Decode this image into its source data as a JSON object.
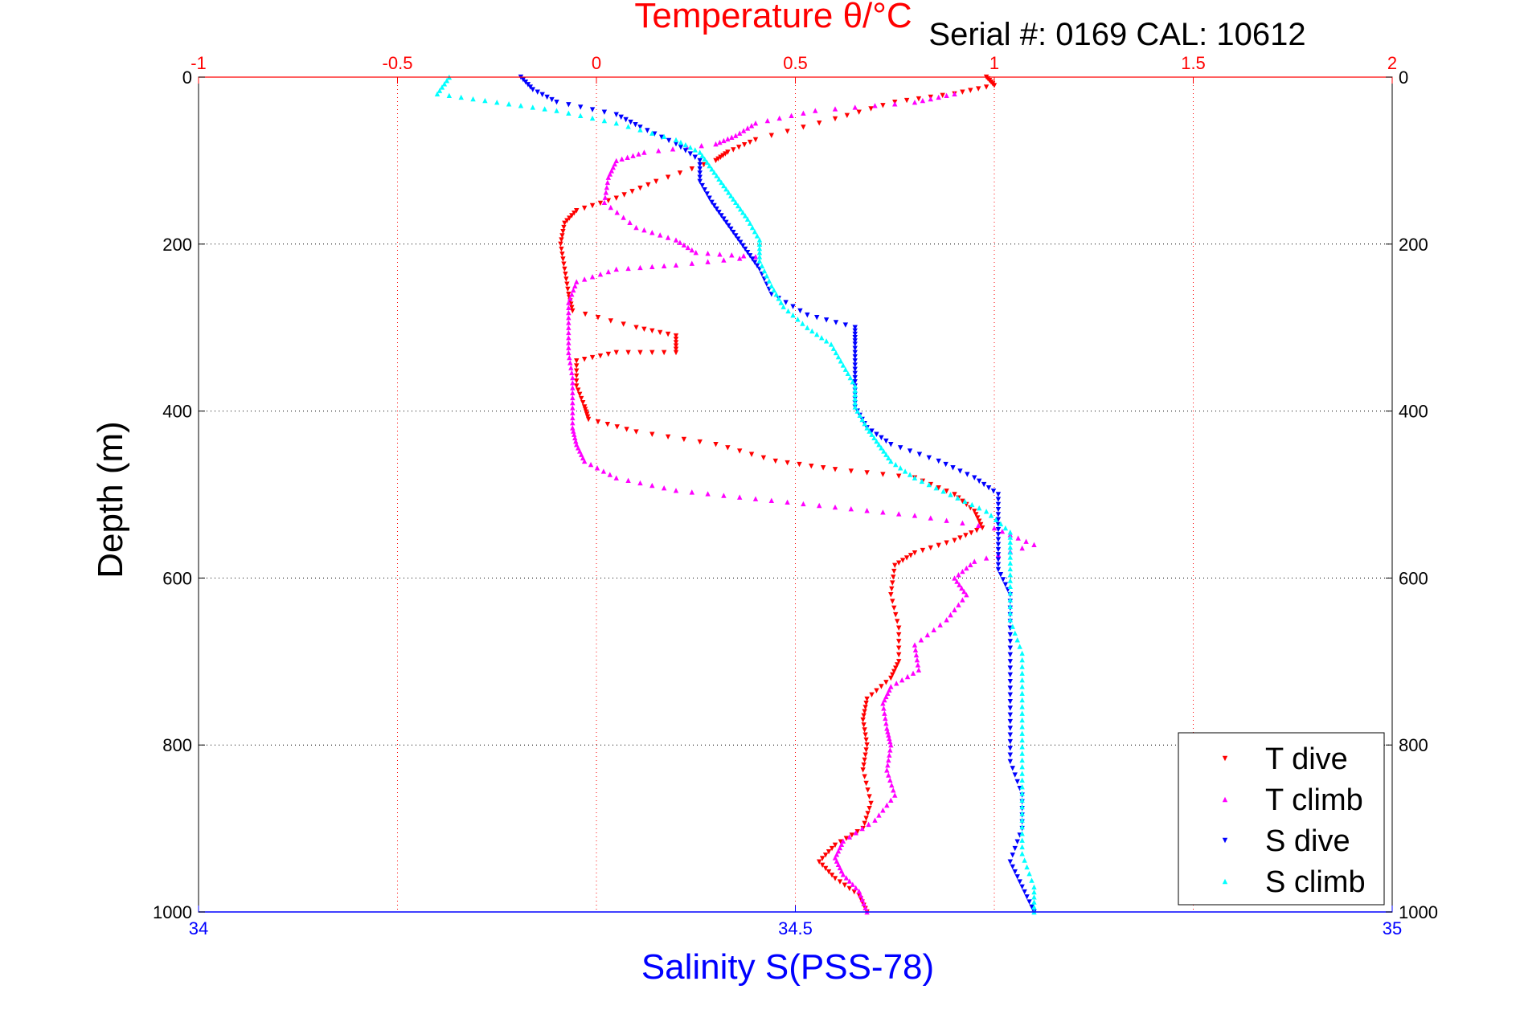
{
  "chart_data": {
    "type": "scatter",
    "title": "Temperature θ/°C",
    "subtitle": "Serial #: 0169 CAL: 10612",
    "xlabel": "Salinity S(PSS-78)",
    "ylabel": "Depth (m)",
    "x_top": {
      "label": "Temperature θ/°C",
      "lim": [
        -1,
        2
      ],
      "ticks": [
        "-1",
        "-0.5",
        "0",
        "0.5",
        "1",
        "1.5",
        "2"
      ],
      "color": "#ff0000"
    },
    "x_bottom": {
      "label": "Salinity S(PSS-78)",
      "lim": [
        34,
        35
      ],
      "ticks": [
        "34",
        "34.5",
        "35"
      ],
      "color": "#0000ff"
    },
    "y": {
      "lim": [
        0,
        1000
      ],
      "reversed": true,
      "ticks": [
        "0",
        "200",
        "400",
        "600",
        "800",
        "1000"
      ]
    },
    "grid": true,
    "legend_position": "bottom-right",
    "series": [
      {
        "name": "T dive",
        "axis": "temperature",
        "color": "#ff0000",
        "marker": "triangle-down",
        "points": [
          [
            0.98,
            0
          ],
          [
            1.0,
            10
          ],
          [
            0.9,
            20
          ],
          [
            0.75,
            30
          ],
          [
            0.6,
            50
          ],
          [
            0.4,
            75
          ],
          [
            0.33,
            90
          ],
          [
            0.3,
            100
          ],
          [
            0.15,
            125
          ],
          [
            0.05,
            145
          ],
          [
            -0.05,
            160
          ],
          [
            -0.08,
            175
          ],
          [
            -0.09,
            200
          ],
          [
            -0.08,
            230
          ],
          [
            -0.07,
            260
          ],
          [
            -0.06,
            280
          ],
          [
            0.1,
            300
          ],
          [
            0.2,
            310
          ],
          [
            0.2,
            330
          ],
          [
            0.05,
            330
          ],
          [
            -0.05,
            340
          ],
          [
            -0.05,
            370
          ],
          [
            -0.03,
            395
          ],
          [
            -0.02,
            410
          ],
          [
            0.1,
            425
          ],
          [
            0.3,
            440
          ],
          [
            0.45,
            460
          ],
          [
            0.6,
            470
          ],
          [
            0.8,
            480
          ],
          [
            0.9,
            500
          ],
          [
            0.95,
            520
          ],
          [
            0.97,
            540
          ],
          [
            0.9,
            555
          ],
          [
            0.8,
            570
          ],
          [
            0.75,
            585
          ],
          [
            0.74,
            620
          ],
          [
            0.76,
            660
          ],
          [
            0.76,
            700
          ],
          [
            0.74,
            720
          ],
          [
            0.68,
            745
          ],
          [
            0.67,
            770
          ],
          [
            0.68,
            800
          ],
          [
            0.67,
            830
          ],
          [
            0.69,
            870
          ],
          [
            0.67,
            900
          ],
          [
            0.6,
            920
          ],
          [
            0.56,
            940
          ],
          [
            0.6,
            960
          ],
          [
            0.66,
            980
          ],
          [
            0.68,
            1000
          ]
        ]
      },
      {
        "name": "T climb",
        "axis": "temperature",
        "color": "#ff00ff",
        "marker": "triangle-up",
        "points": [
          [
            0.9,
            20
          ],
          [
            0.8,
            30
          ],
          [
            0.55,
            40
          ],
          [
            0.4,
            55
          ],
          [
            0.35,
            70
          ],
          [
            0.3,
            80
          ],
          [
            0.12,
            90
          ],
          [
            0.05,
            100
          ],
          [
            0.03,
            120
          ],
          [
            0.02,
            150
          ],
          [
            0.1,
            180
          ],
          [
            0.2,
            195
          ],
          [
            0.25,
            210
          ],
          [
            0.4,
            215
          ],
          [
            0.2,
            225
          ],
          [
            0.05,
            230
          ],
          [
            -0.05,
            245
          ],
          [
            -0.07,
            270
          ],
          [
            -0.07,
            300
          ],
          [
            -0.07,
            330
          ],
          [
            -0.06,
            360
          ],
          [
            -0.06,
            390
          ],
          [
            -0.06,
            420
          ],
          [
            -0.05,
            440
          ],
          [
            -0.03,
            460
          ],
          [
            0.05,
            480
          ],
          [
            0.2,
            495
          ],
          [
            0.4,
            505
          ],
          [
            0.6,
            515
          ],
          [
            0.8,
            525
          ],
          [
            1.0,
            540
          ],
          [
            1.1,
            560
          ],
          [
            0.95,
            580
          ],
          [
            0.9,
            600
          ],
          [
            0.93,
            620
          ],
          [
            0.88,
            650
          ],
          [
            0.8,
            680
          ],
          [
            0.81,
            710
          ],
          [
            0.74,
            730
          ],
          [
            0.72,
            750
          ],
          [
            0.73,
            780
          ],
          [
            0.74,
            800
          ],
          [
            0.73,
            830
          ],
          [
            0.75,
            860
          ],
          [
            0.7,
            890
          ],
          [
            0.62,
            915
          ],
          [
            0.6,
            935
          ],
          [
            0.62,
            955
          ],
          [
            0.66,
            975
          ],
          [
            0.68,
            1000
          ]
        ]
      },
      {
        "name": "S dive",
        "axis": "salinity",
        "color": "#0000ff",
        "marker": "triangle-down",
        "points": [
          [
            34.27,
            0
          ],
          [
            34.28,
            15
          ],
          [
            34.3,
            30
          ],
          [
            34.35,
            45
          ],
          [
            34.37,
            60
          ],
          [
            34.4,
            80
          ],
          [
            34.42,
            100
          ],
          [
            34.42,
            125
          ],
          [
            34.43,
            150
          ],
          [
            34.44,
            170
          ],
          [
            34.45,
            190
          ],
          [
            34.46,
            210
          ],
          [
            34.47,
            230
          ],
          [
            34.48,
            260
          ],
          [
            34.51,
            285
          ],
          [
            34.55,
            300
          ],
          [
            34.55,
            320
          ],
          [
            34.55,
            345
          ],
          [
            34.55,
            370
          ],
          [
            34.55,
            395
          ],
          [
            34.56,
            420
          ],
          [
            34.58,
            440
          ],
          [
            34.62,
            460
          ],
          [
            34.65,
            480
          ],
          [
            34.67,
            500
          ],
          [
            34.67,
            530
          ],
          [
            34.67,
            560
          ],
          [
            34.67,
            590
          ],
          [
            34.68,
            620
          ],
          [
            34.68,
            660
          ],
          [
            34.68,
            700
          ],
          [
            34.68,
            740
          ],
          [
            34.68,
            780
          ],
          [
            34.68,
            820
          ],
          [
            34.69,
            860
          ],
          [
            34.69,
            900
          ],
          [
            34.68,
            940
          ],
          [
            34.69,
            970
          ],
          [
            34.7,
            1000
          ]
        ]
      },
      {
        "name": "S climb",
        "axis": "salinity",
        "color": "#00ffff",
        "marker": "triangle-up",
        "points": [
          [
            34.21,
            0
          ],
          [
            34.2,
            20
          ],
          [
            34.25,
            30
          ],
          [
            34.3,
            40
          ],
          [
            34.35,
            55
          ],
          [
            34.4,
            75
          ],
          [
            34.42,
            90
          ],
          [
            34.43,
            110
          ],
          [
            34.44,
            130
          ],
          [
            34.45,
            150
          ],
          [
            34.46,
            170
          ],
          [
            34.47,
            195
          ],
          [
            34.47,
            220
          ],
          [
            34.48,
            250
          ],
          [
            34.49,
            275
          ],
          [
            34.51,
            300
          ],
          [
            34.53,
            320
          ],
          [
            34.54,
            345
          ],
          [
            34.55,
            370
          ],
          [
            34.55,
            395
          ],
          [
            34.56,
            420
          ],
          [
            34.57,
            440
          ],
          [
            34.58,
            460
          ],
          [
            34.6,
            480
          ],
          [
            34.63,
            500
          ],
          [
            34.66,
            520
          ],
          [
            34.68,
            545
          ],
          [
            34.68,
            575
          ],
          [
            34.68,
            610
          ],
          [
            34.68,
            650
          ],
          [
            34.69,
            690
          ],
          [
            34.69,
            730
          ],
          [
            34.69,
            770
          ],
          [
            34.69,
            810
          ],
          [
            34.69,
            850
          ],
          [
            34.69,
            890
          ],
          [
            34.69,
            930
          ],
          [
            34.7,
            970
          ],
          [
            34.7,
            1000
          ]
        ]
      }
    ]
  }
}
